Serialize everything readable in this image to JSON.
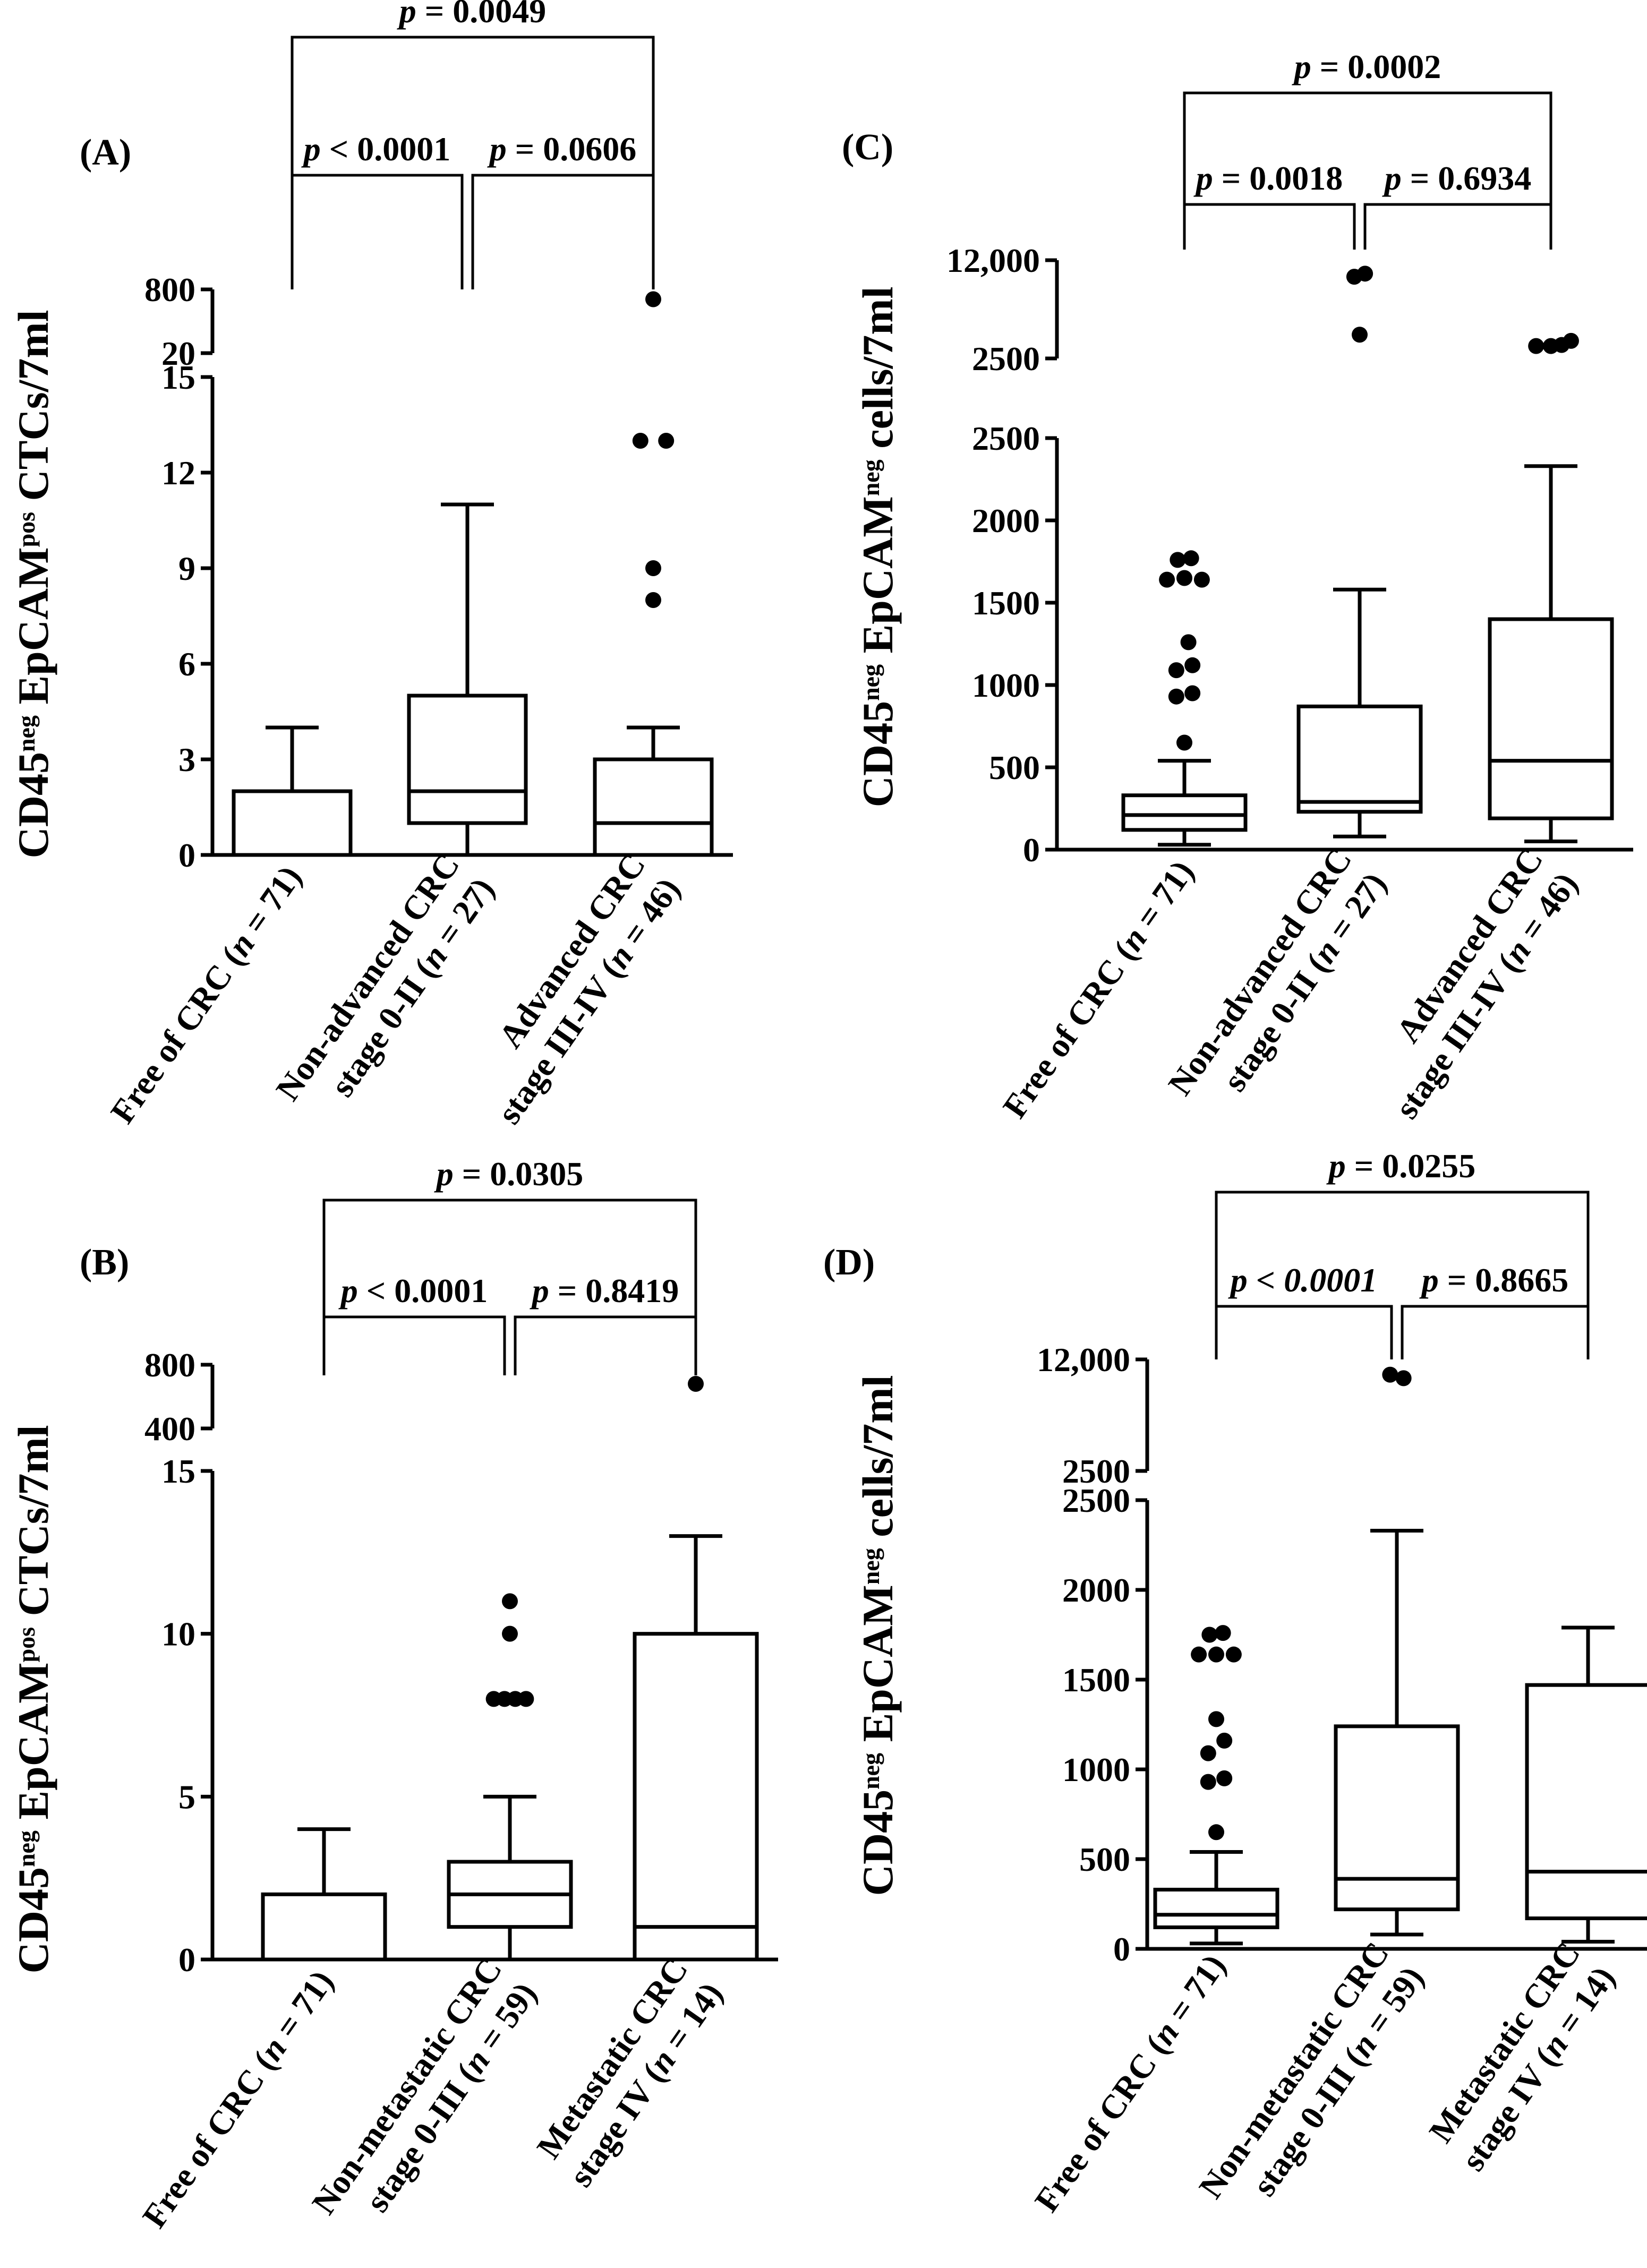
{
  "chart_data": [
    {
      "type": "box",
      "panel_label": "(A)",
      "ylabel_parts": [
        "CD45",
        "neg",
        " EpCAM",
        "pos",
        " CTCs/7ml"
      ],
      "categories": [
        [
          "Free of CRC (",
          "n",
          " = 71)"
        ],
        [
          "Non-advanced CRC",
          "stage 0-II (",
          "n",
          " = 27)"
        ],
        [
          "Advanced CRC",
          "stage III-IV (",
          "n",
          " = 46)"
        ]
      ],
      "y_lower": {
        "range": [
          0,
          15
        ],
        "ticks": [
          0,
          3,
          6,
          9,
          12,
          15
        ],
        "tick_labels": [
          "0",
          "3",
          "6",
          "9",
          "12",
          "15"
        ]
      },
      "y_upper": {
        "range": [
          20,
          800
        ],
        "ticks": [
          20,
          800
        ],
        "tick_labels": [
          "20",
          "800"
        ]
      },
      "boxes": [
        {
          "whisker_low": 0,
          "q1": 0,
          "median": 0,
          "q3": 2,
          "whisker_high": 4
        },
        {
          "whisker_low": 0,
          "q1": 1,
          "median": 2,
          "q3": 5,
          "whisker_high": 11
        },
        {
          "whisker_low": 0,
          "q1": 0,
          "median": 1,
          "q3": 3,
          "whisker_high": 4
        }
      ],
      "outliers": [
        {
          "group": 2,
          "value": 8,
          "xoff": 0
        },
        {
          "group": 2,
          "value": 9,
          "xoff": 0
        },
        {
          "group": 2,
          "value": 13,
          "xoff": -0.2
        },
        {
          "group": 2,
          "value": 13,
          "xoff": 0.2
        },
        {
          "group": 2,
          "value": 680,
          "xoff": 0
        }
      ],
      "comparisons": [
        {
          "from": 0,
          "to": 1,
          "level": 1,
          "text": "< 0.0001"
        },
        {
          "from": 1,
          "to": 2,
          "level": 1,
          "text": "= 0.0606"
        },
        {
          "from": 0,
          "to": 2,
          "level": 2,
          "text": "= 0.0049"
        }
      ]
    },
    {
      "type": "box",
      "panel_label": "(B)",
      "ylabel_parts": [
        "CD45",
        "neg",
        " EpCAM",
        "pos",
        " CTCs/7ml"
      ],
      "categories": [
        [
          "Free of CRC (",
          "n",
          " = 71)"
        ],
        [
          "Non-metastatic CRC",
          "stage 0-III (",
          "n",
          " = 59)"
        ],
        [
          "Metastatic CRC",
          "stage IV (",
          "n",
          " = 14)"
        ]
      ],
      "y_lower": {
        "range": [
          0,
          15
        ],
        "ticks": [
          0,
          5,
          10,
          15
        ],
        "tick_labels": [
          "0",
          "5",
          "10",
          "15"
        ]
      },
      "y_upper": {
        "range": [
          400,
          800
        ],
        "ticks": [
          400,
          800
        ],
        "tick_labels": [
          "400",
          "800"
        ]
      },
      "boxes": [
        {
          "whisker_low": 0,
          "q1": 0,
          "median": 0,
          "q3": 2,
          "whisker_high": 4
        },
        {
          "whisker_low": 0,
          "q1": 1,
          "median": 2,
          "q3": 3,
          "whisker_high": 5
        },
        {
          "whisker_low": 0,
          "q1": 0,
          "median": 1,
          "q3": 10,
          "whisker_high": 13
        }
      ],
      "outliers": [
        {
          "group": 1,
          "value": 8,
          "xoff": -0.24
        },
        {
          "group": 1,
          "value": 8,
          "xoff": -0.08
        },
        {
          "group": 1,
          "value": 8,
          "xoff": 0.08
        },
        {
          "group": 1,
          "value": 8,
          "xoff": 0.24
        },
        {
          "group": 1,
          "value": 10,
          "xoff": 0
        },
        {
          "group": 1,
          "value": 11,
          "xoff": 0
        },
        {
          "group": 2,
          "value": 680,
          "xoff": 0
        }
      ],
      "comparisons": [
        {
          "from": 0,
          "to": 1,
          "level": 1,
          "text": "< 0.0001"
        },
        {
          "from": 1,
          "to": 2,
          "level": 1,
          "text": "= 0.8419"
        },
        {
          "from": 0,
          "to": 2,
          "level": 2,
          "text": "= 0.0305"
        }
      ]
    },
    {
      "type": "box",
      "panel_label": "(C)",
      "ylabel_parts": [
        "CD45",
        "neg",
        " EpCAM",
        "neg",
        " cells/7ml"
      ],
      "categories": [
        [
          "Free of CRC (",
          "n",
          " = 71)"
        ],
        [
          "Non-advanced CRC",
          "stage 0-II (",
          "n",
          " = 27)"
        ],
        [
          "Advanced CRC",
          "stage III-IV (",
          "n",
          " = 46)"
        ]
      ],
      "y_lower": {
        "range": [
          0,
          2500
        ],
        "ticks": [
          0,
          500,
          1000,
          1500,
          2000,
          2500
        ],
        "tick_labels": [
          "0",
          "500",
          "1000",
          "1500",
          "2000",
          "2500"
        ]
      },
      "y_upper": {
        "range": [
          2500,
          12000
        ],
        "ticks": [
          2500,
          12000
        ],
        "tick_labels": [
          "2500",
          "12,000"
        ]
      },
      "boxes": [
        {
          "whisker_low": 30,
          "q1": 120,
          "median": 210,
          "q3": 330,
          "whisker_high": 540
        },
        {
          "whisker_low": 80,
          "q1": 230,
          "median": 290,
          "q3": 870,
          "whisker_high": 1580
        },
        {
          "whisker_low": 50,
          "q1": 190,
          "median": 540,
          "q3": 1400,
          "whisker_high": 2330
        }
      ],
      "outliers": [
        {
          "group": 0,
          "value": 650,
          "xoff": 0
        },
        {
          "group": 0,
          "value": 930,
          "xoff": -0.12
        },
        {
          "group": 0,
          "value": 950,
          "xoff": 0.12
        },
        {
          "group": 0,
          "value": 1090,
          "xoff": -0.12
        },
        {
          "group": 0,
          "value": 1120,
          "xoff": 0.12
        },
        {
          "group": 0,
          "value": 1260,
          "xoff": 0.06
        },
        {
          "group": 0,
          "value": 1640,
          "xoff": -0.26
        },
        {
          "group": 0,
          "value": 1640,
          "xoff": 0.26
        },
        {
          "group": 0,
          "value": 1650,
          "xoff": 0
        },
        {
          "group": 0,
          "value": 1760,
          "xoff": -0.1
        },
        {
          "group": 0,
          "value": 1770,
          "xoff": 0.1
        },
        {
          "group": 1,
          "value": 10400,
          "xoff": -0.08
        },
        {
          "group": 1,
          "value": 10700,
          "xoff": 0.08
        },
        {
          "group": 1,
          "value": 4800,
          "xoff": 0
        },
        {
          "group": 2,
          "value": 3700,
          "xoff": -0.22
        },
        {
          "group": 2,
          "value": 3700,
          "xoff": 0
        },
        {
          "group": 2,
          "value": 3800,
          "xoff": 0.16
        },
        {
          "group": 2,
          "value": 4200,
          "xoff": 0.3
        }
      ],
      "comparisons": [
        {
          "from": 0,
          "to": 1,
          "level": 1,
          "text": "= 0.0018"
        },
        {
          "from": 1,
          "to": 2,
          "level": 1,
          "text": "= 0.6934"
        },
        {
          "from": 0,
          "to": 2,
          "level": 2,
          "text": "= 0.0002"
        }
      ]
    },
    {
      "type": "box",
      "panel_label": "(D)",
      "ylabel_parts": [
        "CD45",
        "neg",
        " EpCAM",
        "neg",
        " cells/7ml"
      ],
      "categories": [
        [
          "Free of CRC (",
          "n",
          " = 71)"
        ],
        [
          "Non-metastatic CRC",
          "stage 0-III (",
          "n",
          " = 59)"
        ],
        [
          "Metastatic CRC",
          "stage IV (",
          "n",
          " = 14)"
        ]
      ],
      "y_lower": {
        "range": [
          0,
          2500
        ],
        "ticks": [
          0,
          500,
          1000,
          1500,
          2000,
          2500
        ],
        "tick_labels": [
          "0",
          "500",
          "1000",
          "1500",
          "2000",
          "2500"
        ]
      },
      "y_upper": {
        "range": [
          2500,
          12000
        ],
        "ticks": [
          2500,
          12000
        ],
        "tick_labels": [
          "2500",
          "12,000"
        ]
      },
      "boxes": [
        {
          "whisker_low": 30,
          "q1": 120,
          "median": 190,
          "q3": 330,
          "whisker_high": 540
        },
        {
          "whisker_low": 80,
          "q1": 220,
          "median": 390,
          "q3": 1240,
          "whisker_high": 2330
        },
        {
          "whisker_low": 40,
          "q1": 170,
          "median": 430,
          "q3": 1470,
          "whisker_high": 1790
        }
      ],
      "outliers": [
        {
          "group": 0,
          "value": 650,
          "xoff": 0
        },
        {
          "group": 0,
          "value": 930,
          "xoff": -0.12
        },
        {
          "group": 0,
          "value": 950,
          "xoff": 0.12
        },
        {
          "group": 0,
          "value": 1090,
          "xoff": -0.12
        },
        {
          "group": 0,
          "value": 1160,
          "xoff": 0.12
        },
        {
          "group": 0,
          "value": 1280,
          "xoff": 0
        },
        {
          "group": 0,
          "value": 1640,
          "xoff": -0.26
        },
        {
          "group": 0,
          "value": 1640,
          "xoff": 0.26
        },
        {
          "group": 0,
          "value": 1640,
          "xoff": 0
        },
        {
          "group": 0,
          "value": 1750,
          "xoff": -0.1
        },
        {
          "group": 0,
          "value": 1760,
          "xoff": 0.1
        },
        {
          "group": 1,
          "value": 10700,
          "xoff": -0.1
        },
        {
          "group": 1,
          "value": 10400,
          "xoff": 0.1
        }
      ],
      "comparisons": [
        {
          "from": 0,
          "to": 1,
          "level": 1,
          "text": "< 0.0001",
          "italic_value": true
        },
        {
          "from": 1,
          "to": 2,
          "level": 1,
          "text": "= 0.8665"
        },
        {
          "from": 0,
          "to": 2,
          "level": 2,
          "text": "= 0.0255"
        }
      ]
    }
  ]
}
